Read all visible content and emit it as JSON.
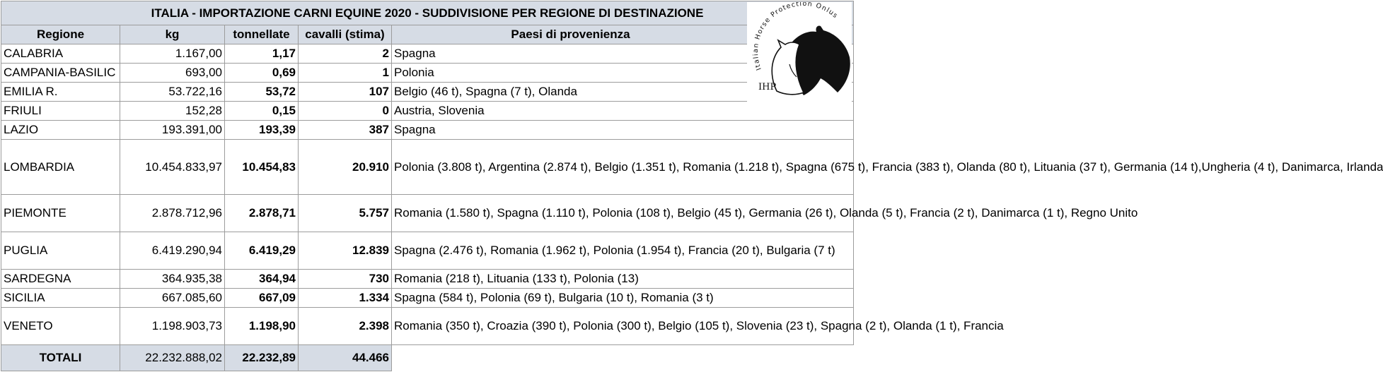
{
  "title": "ITALIA - IMPORTAZIONE CARNI EQUINE 2020 - SUDDIVISIONE PER REGIONE DI DESTINAZIONE",
  "columns": [
    "Regione",
    "kg",
    "tonnellate",
    "cavalli (stima)",
    "Paesi di provenienza"
  ],
  "rows": [
    {
      "region": "CALABRIA",
      "kg": "1.167,00",
      "t": "1,17",
      "horses": "2",
      "countries": "Spagna"
    },
    {
      "region": "CAMPANIA-BASILIC",
      "kg": "693,00",
      "t": "0,69",
      "horses": "1",
      "countries": "Polonia"
    },
    {
      "region": "EMILIA R.",
      "kg": "53.722,16",
      "t": "53,72",
      "horses": "107",
      "countries": "Belgio (46 t), Spagna (7 t), Olanda"
    },
    {
      "region": "FRIULI",
      "kg": "152,28",
      "t": "0,15",
      "horses": "0",
      "countries": "Austria, Slovenia"
    },
    {
      "region": "LAZIO",
      "kg": "193.391,00",
      "t": "193,39",
      "horses": "387",
      "countries": "Spagna"
    },
    {
      "region": "LOMBARDIA",
      "kg": "10.454.833,97",
      "t": "10.454,83",
      "horses": "20.910",
      "countries": "Polonia (3.808 t), Argentina (2.874 t), Belgio (1.351 t), Romania (1.218 t), Spagna (675 t), Francia (383 t), Olanda (80 t), Lituania (37 t), Germania (14 t),Ungheria (4 t), Danimarca, Irlanda"
    },
    {
      "region": "PIEMONTE",
      "kg": "2.878.712,96",
      "t": "2.878,71",
      "horses": "5.757",
      "countries": "Romania (1.580 t), Spagna (1.110 t), Polonia (108 t), Belgio (45 t), Germania (26 t), Olanda (5 t), Francia (2 t), Danimarca (1 t), Regno Unito"
    },
    {
      "region": "PUGLIA",
      "kg": "6.419.290,94",
      "t": "6.419,29",
      "horses": "12.839",
      "countries": "Spagna (2.476 t), Romania (1.962 t), Polonia (1.954 t), Francia (20 t), Bulgaria (7 t)"
    },
    {
      "region": "SARDEGNA",
      "kg": "364.935,38",
      "t": "364,94",
      "horses": "730",
      "countries": "Romania (218 t), Lituania (133 t), Polonia (13)"
    },
    {
      "region": "SICILIA",
      "kg": "667.085,60",
      "t": "667,09",
      "horses": "1.334",
      "countries": "Spagna (584 t), Polonia (69 t), Bulgaria (10 t), Romania (3 t)"
    },
    {
      "region": "VENETO",
      "kg": "1.198.903,73",
      "t": "1.198,90",
      "horses": "2.398",
      "countries": "Romania (350 t), Croazia (390 t), Polonia (300 t), Belgio (105 t), Slovenia (23 t), Spagna (2 t), Olanda (1 t), Francia"
    }
  ],
  "totals": {
    "label": "TOTALI",
    "kg": "22.232.888,02",
    "t": "22.232,89",
    "horses": "44.466"
  },
  "logo": {
    "text": "Italian Horse Protection Onlus",
    "initials": "IHP",
    "color": "#111111"
  }
}
